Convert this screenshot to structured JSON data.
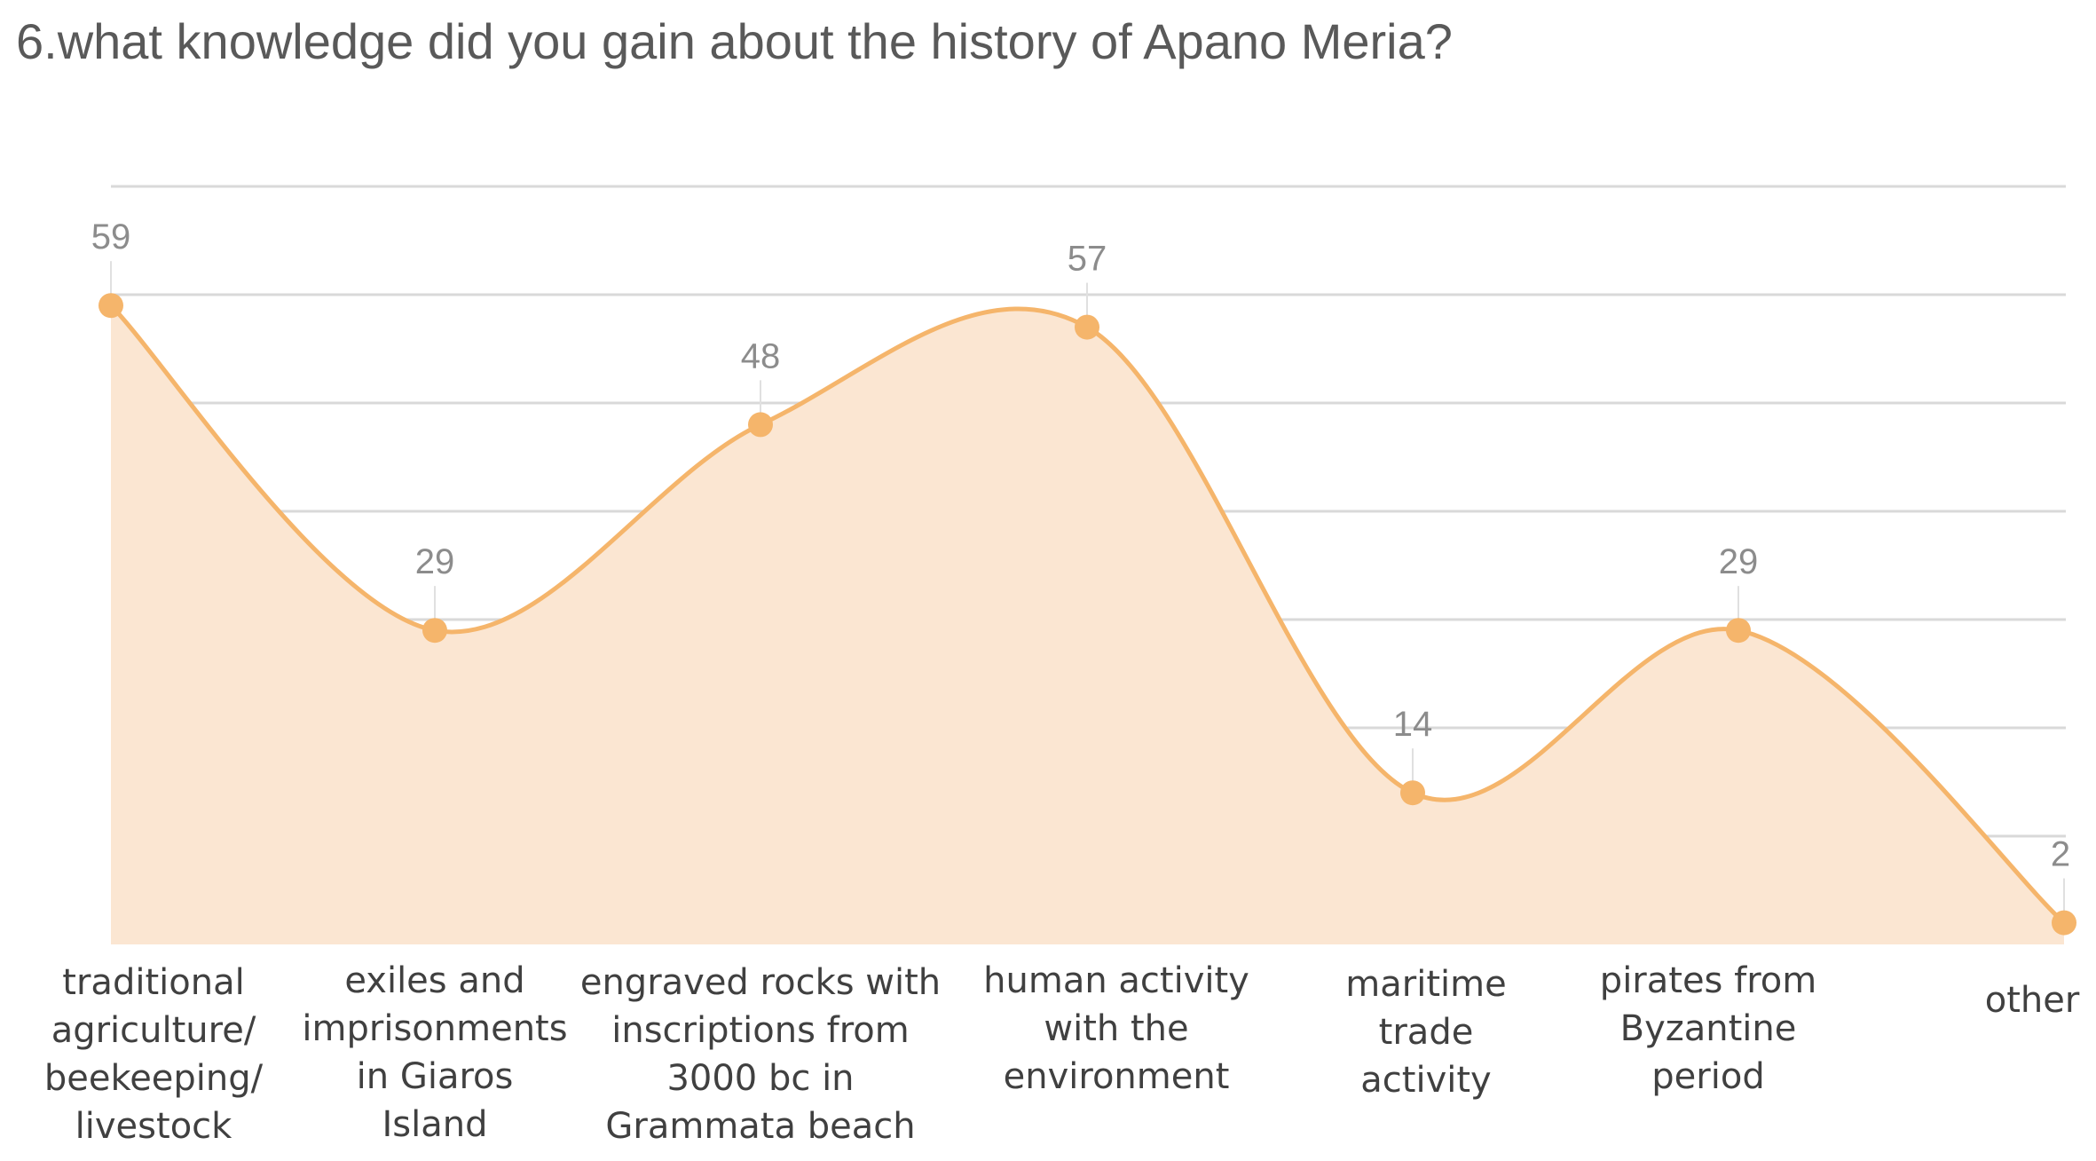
{
  "chart_data": {
    "type": "area",
    "title": "6.what knowledge did you gain about the history of Apano Meria?",
    "categories": [
      "traditional agriculture/ beekeeping/ livestock",
      "exiles and imprisonments in Giaros Island",
      "engraved rocks with inscriptions from 3000 bc in Grammata beach",
      "human activity with the environment",
      "maritime trade activity",
      "pirates from Byzantine period",
      "other"
    ],
    "category_lines": [
      [
        "traditional",
        "agriculture/",
        "beekeeping/",
        "livestock"
      ],
      [
        "exiles and",
        "imprisonments",
        "in Giaros",
        "Island"
      ],
      [
        "engraved rocks with",
        "inscriptions from",
        "3000 bc in",
        "Grammata beach"
      ],
      [
        "human activity",
        "with the",
        "environment"
      ],
      [
        "maritime",
        "trade",
        "activity"
      ],
      [
        "pirates from",
        "Byzantine",
        "period"
      ],
      [
        "other"
      ]
    ],
    "values": [
      59,
      29,
      48,
      57,
      14,
      29,
      2
    ],
    "data_labels_shown": true,
    "ylim": [
      0,
      70
    ],
    "y_axis_labels_shown": false,
    "grid": "horizontal",
    "legend": "none",
    "smooth": true,
    "colors": {
      "line": "#f5b56b",
      "fill": "#fbe6d2",
      "marker": "#f5b56b",
      "grid": "#d9d9d9",
      "title_text": "#595959",
      "label_text": "#404040",
      "value_text": "#8c8c8c"
    }
  }
}
